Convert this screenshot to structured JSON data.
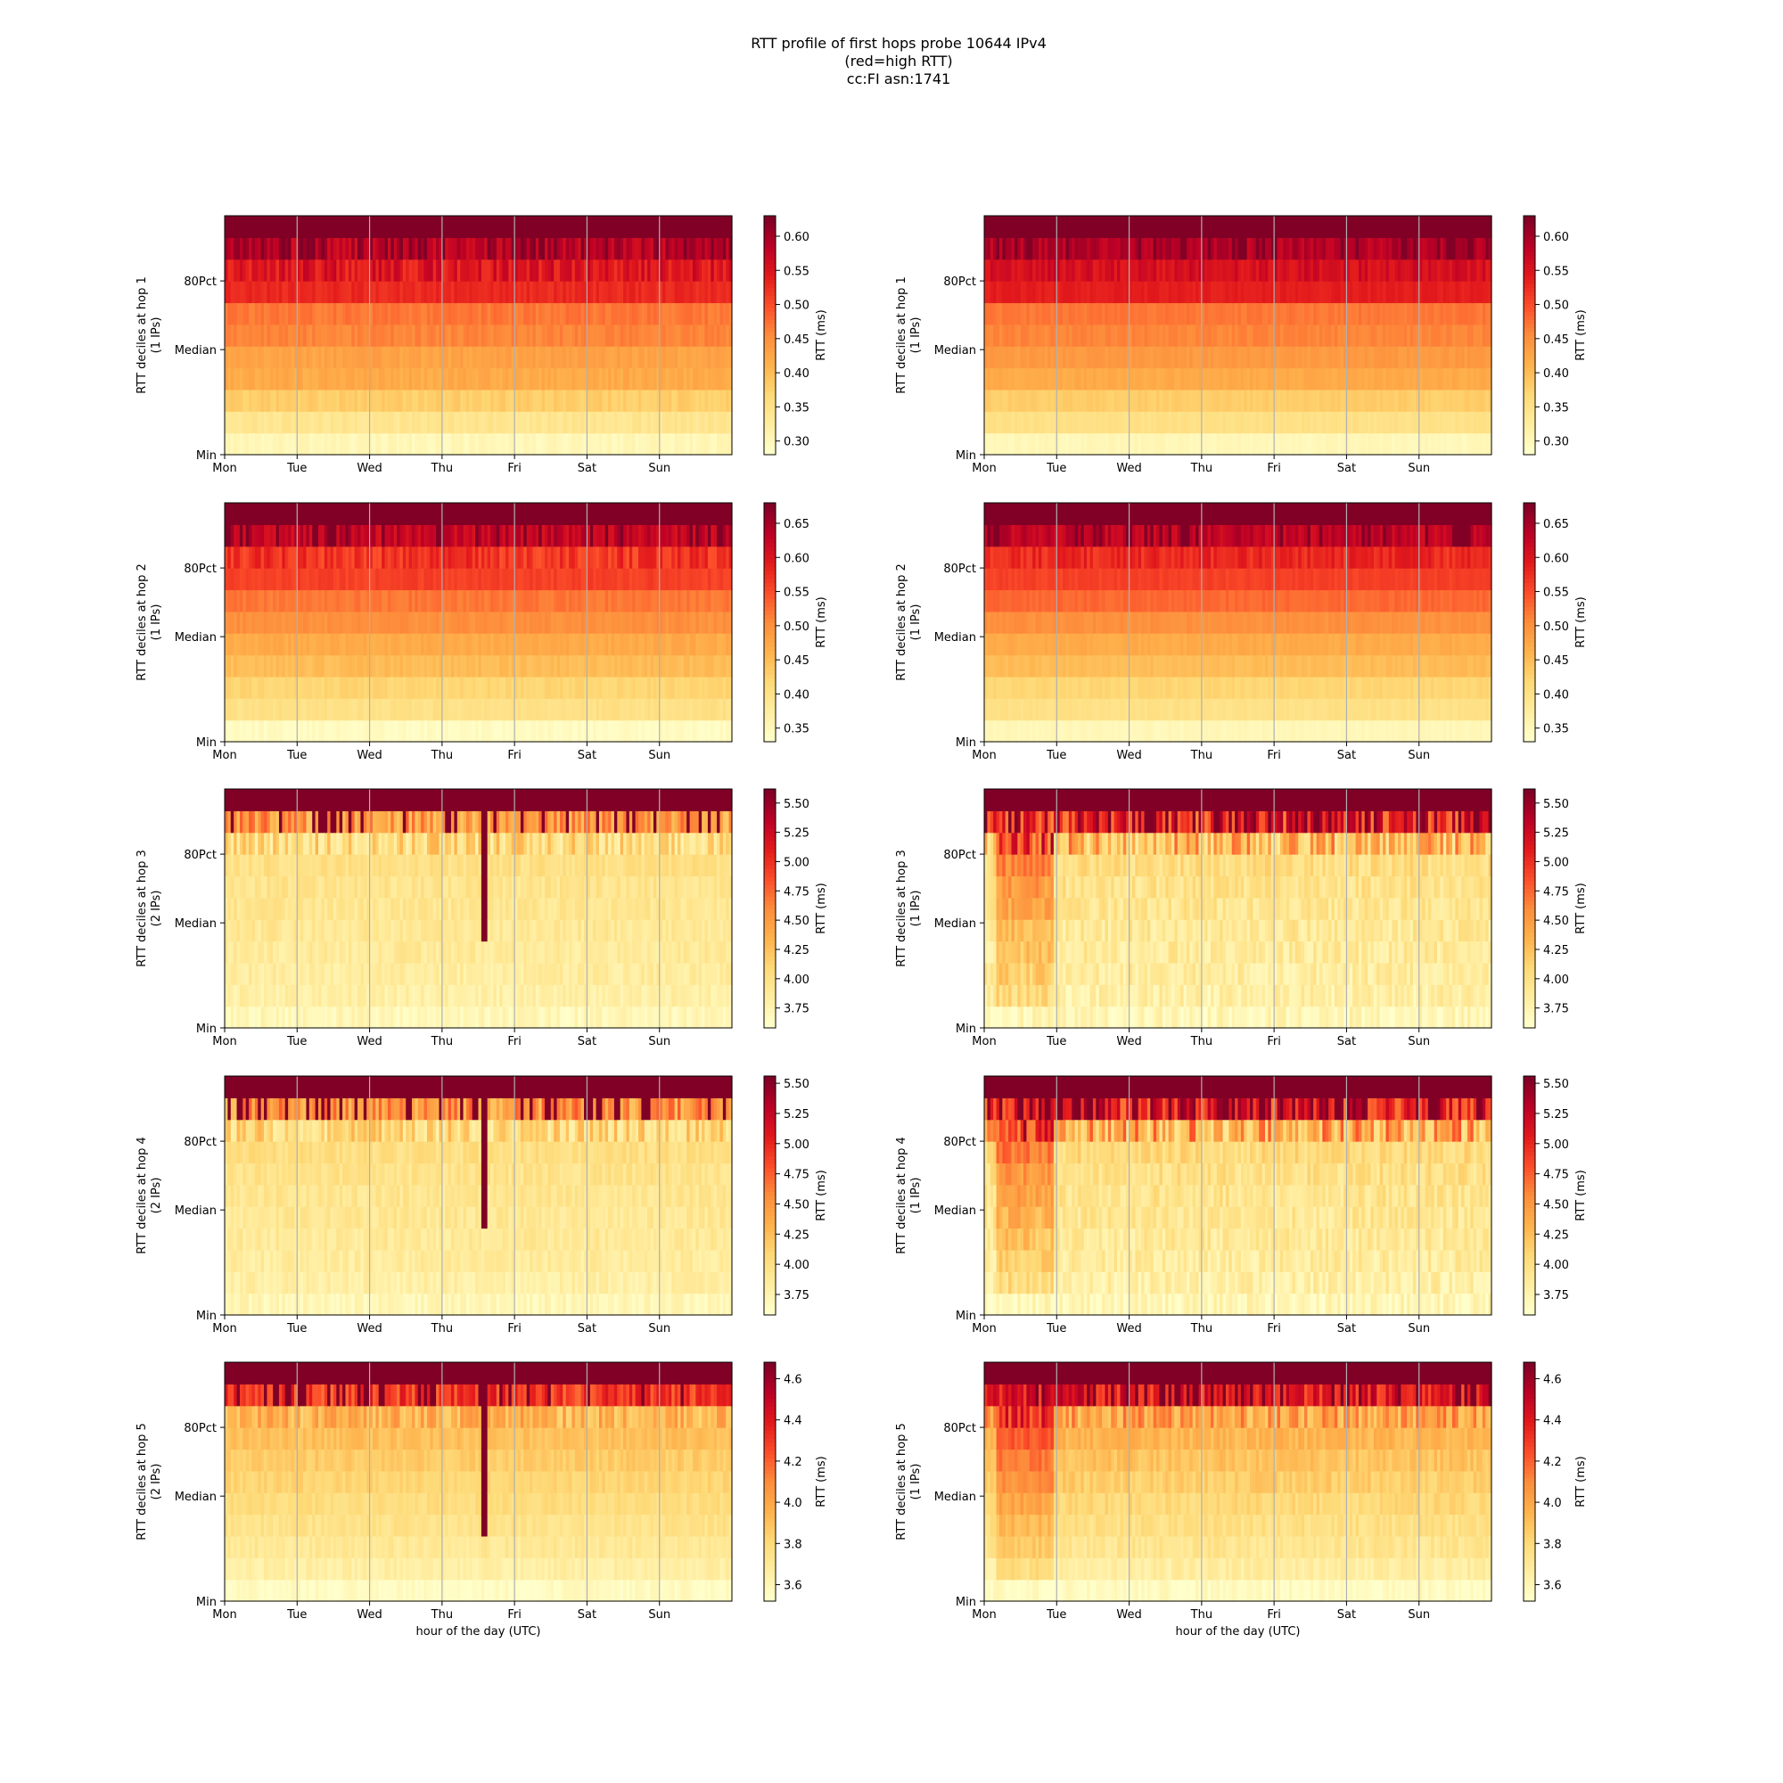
{
  "title": {
    "lines": [
      "RTT profile of first hops probe 10644 IPv4",
      "(red=high RTT)",
      "cc:FI asn:1741"
    ]
  },
  "colormap": {
    "name": "YlOrRd",
    "low_color": "#ffffcc",
    "high_color": "#800026"
  },
  "x_ticks": [
    "Mon",
    "Tue",
    "Wed",
    "Thu",
    "Fri",
    "Sat",
    "Sun"
  ],
  "y_ticks": [
    "Min",
    "Median",
    "80Pct"
  ],
  "xlabel": "hour of the day (UTC)",
  "colorbar_label": "RTT (ms)",
  "chart_data": [
    {
      "type": "heatmap",
      "hop": 1,
      "ips": 1,
      "ylabel": "RTT deciles at hop 1",
      "ylabel2": "(1 IPs)",
      "decile_rtt_ms": [
        0.3,
        0.34,
        0.38,
        0.42,
        0.43,
        0.46,
        0.47,
        0.53,
        0.55,
        0.59,
        0.75
      ],
      "cbar_range": [
        0.28,
        0.63
      ],
      "cbar_ticks": [
        "0.30",
        "0.35",
        "0.40",
        "0.45",
        "0.50",
        "0.55",
        "0.60"
      ],
      "noise": 0.03,
      "spike": null,
      "early_bump": 0
    },
    {
      "type": "heatmap",
      "hop": 1,
      "ips": 1,
      "ylabel": "RTT deciles at hop 1",
      "ylabel2": "(1 IPs)",
      "decile_rtt_ms": [
        0.3,
        0.35,
        0.38,
        0.42,
        0.44,
        0.46,
        0.47,
        0.54,
        0.56,
        0.59,
        0.75
      ],
      "cbar_range": [
        0.28,
        0.63
      ],
      "cbar_ticks": [
        "0.30",
        "0.35",
        "0.40",
        "0.45",
        "0.50",
        "0.55",
        "0.60"
      ],
      "noise": 0.02,
      "spike": null,
      "early_bump": 0
    },
    {
      "type": "heatmap",
      "hop": 2,
      "ips": 1,
      "ylabel": "RTT deciles at hop 2",
      "ylabel2": "(1 IPs)",
      "decile_rtt_ms": [
        0.34,
        0.4,
        0.42,
        0.45,
        0.47,
        0.5,
        0.52,
        0.56,
        0.57,
        0.63,
        0.8
      ],
      "cbar_range": [
        0.33,
        0.68
      ],
      "cbar_ticks": [
        "0.35",
        "0.40",
        "0.45",
        "0.50",
        "0.55",
        "0.60",
        "0.65"
      ],
      "noise": 0.025,
      "spike": null,
      "early_bump": 0
    },
    {
      "type": "heatmap",
      "hop": 2,
      "ips": 1,
      "ylabel": "RTT deciles at hop 2",
      "ylabel2": "(1 IPs)",
      "decile_rtt_ms": [
        0.35,
        0.4,
        0.42,
        0.45,
        0.47,
        0.5,
        0.53,
        0.56,
        0.58,
        0.63,
        0.8
      ],
      "cbar_range": [
        0.33,
        0.68
      ],
      "cbar_ticks": [
        "0.35",
        "0.40",
        "0.45",
        "0.50",
        "0.55",
        "0.60",
        "0.65"
      ],
      "noise": 0.02,
      "spike": null,
      "early_bump": 0
    },
    {
      "type": "heatmap",
      "hop": 3,
      "ips": 2,
      "ylabel": "RTT deciles at hop 3",
      "ylabel2": "(2 IPs)",
      "decile_rtt_ms": [
        3.7,
        3.8,
        3.84,
        3.87,
        3.89,
        3.92,
        3.95,
        4.0,
        4.05,
        4.5,
        6.5
      ],
      "cbar_range": [
        3.58,
        5.62
      ],
      "cbar_ticks": [
        "3.75",
        "4.00",
        "4.25",
        "4.50",
        "4.75",
        "5.00",
        "5.25",
        "5.50"
      ],
      "noise": 0.05,
      "spike": {
        "day": 3.57,
        "to_decile": 4
      },
      "early_bump": 0
    },
    {
      "type": "heatmap",
      "hop": 3,
      "ips": 1,
      "ylabel": "RTT deciles at hop 3",
      "ylabel2": "(1 IPs)",
      "decile_rtt_ms": [
        3.7,
        3.8,
        3.84,
        3.87,
        3.89,
        3.93,
        3.96,
        4.02,
        4.3,
        5.1,
        6.5
      ],
      "cbar_range": [
        3.58,
        5.62
      ],
      "cbar_ticks": [
        "3.75",
        "4.00",
        "4.25",
        "4.50",
        "4.75",
        "5.00",
        "5.25",
        "5.50"
      ],
      "noise": 0.08,
      "spike": null,
      "early_bump": 0.3
    },
    {
      "type": "heatmap",
      "hop": 4,
      "ips": 2,
      "ylabel": "RTT deciles at hop 4",
      "ylabel2": "(2 IPs)",
      "decile_rtt_ms": [
        3.7,
        3.8,
        3.84,
        3.87,
        3.89,
        3.92,
        3.95,
        4.0,
        4.05,
        4.5,
        6.5
      ],
      "cbar_range": [
        3.58,
        5.56
      ],
      "cbar_ticks": [
        "3.75",
        "4.00",
        "4.25",
        "4.50",
        "4.75",
        "5.00",
        "5.25",
        "5.50"
      ],
      "noise": 0.05,
      "spike": {
        "day": 3.57,
        "to_decile": 4
      },
      "early_bump": 0
    },
    {
      "type": "heatmap",
      "hop": 4,
      "ips": 1,
      "ylabel": "RTT deciles at hop 4",
      "ylabel2": "(1 IPs)",
      "decile_rtt_ms": [
        3.7,
        3.8,
        3.84,
        3.87,
        3.9,
        3.94,
        3.98,
        4.05,
        4.35,
        5.1,
        6.5
      ],
      "cbar_range": [
        3.58,
        5.56
      ],
      "cbar_ticks": [
        "3.75",
        "4.00",
        "4.25",
        "4.50",
        "4.75",
        "5.00",
        "5.25",
        "5.50"
      ],
      "noise": 0.08,
      "spike": null,
      "early_bump": 0.3
    },
    {
      "type": "heatmap",
      "hop": 5,
      "ips": 2,
      "ylabel": "RTT deciles at hop 5",
      "ylabel2": "(2 IPs)",
      "decile_rtt_ms": [
        3.55,
        3.65,
        3.7,
        3.74,
        3.78,
        3.82,
        3.86,
        3.9,
        3.95,
        4.3,
        5.5
      ],
      "cbar_range": [
        3.52,
        4.68
      ],
      "cbar_ticks": [
        "3.6",
        "3.8",
        "4.0",
        "4.2",
        "4.4",
        "4.6"
      ],
      "noise": 0.04,
      "spike": {
        "day": 3.57,
        "to_decile": 3
      },
      "early_bump": 0
    },
    {
      "type": "heatmap",
      "hop": 5,
      "ips": 1,
      "ylabel": "RTT deciles at hop 5",
      "ylabel2": "(1 IPs)",
      "decile_rtt_ms": [
        3.55,
        3.66,
        3.72,
        3.76,
        3.8,
        3.85,
        3.89,
        3.94,
        4.02,
        4.4,
        5.5
      ],
      "cbar_range": [
        3.52,
        4.68
      ],
      "cbar_ticks": [
        "3.6",
        "3.8",
        "4.0",
        "4.2",
        "4.4",
        "4.6"
      ],
      "noise": 0.05,
      "spike": null,
      "early_bump": 0.25
    }
  ]
}
